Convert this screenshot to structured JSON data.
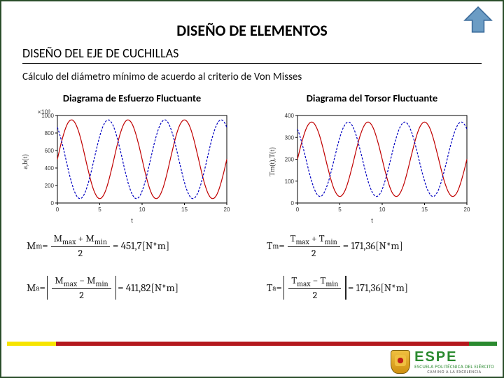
{
  "up_arrow": {
    "fill": "#6b9cc4",
    "stroke": "#3a6a9a"
  },
  "title": "DISEÑO DE ELEMENTOS",
  "subtitle": "DISEÑO DEL EJE DE CUCHILLAS",
  "desc": "Cálculo del diámetro mínimo de acuerdo al criterio de Von Misses",
  "left": {
    "col_title": "Diagrama de Esfuerzo Fluctuante",
    "exp": "×10³",
    "ylabel": "a,b(t)",
    "xlabel": "t",
    "chart": {
      "type": "line",
      "xlim": [
        0,
        20
      ],
      "ylim": [
        0,
        1000
      ],
      "xticks": [
        0,
        5,
        10,
        15,
        20
      ],
      "yticks": [
        0,
        200,
        400,
        600,
        800,
        1000
      ],
      "grid": false,
      "background": "#ffffff",
      "axis_color": "#000000",
      "tick_fontsize": 8,
      "series": [
        {
          "color": "#c00000",
          "label": "",
          "phase": 0,
          "amp": 450,
          "mid": 500,
          "cycles": 3,
          "width": 1.2,
          "dash": ""
        },
        {
          "color": "#0000c0",
          "label": "",
          "phase": 0.35,
          "amp": 450,
          "mid": 500,
          "cycles": 3,
          "width": 1.2,
          "dash": "3 2"
        }
      ]
    },
    "formula1": {
      "lhs_var": "M",
      "lhs_sub": "m",
      "num": "M",
      "numsub1": "max",
      "op": "+",
      "numsub2": "min",
      "den": "2",
      "rhs": "= 451,7[N*m]"
    },
    "formula2": {
      "lhs_var": "M",
      "lhs_sub": "a",
      "abs": true,
      "num": "M",
      "numsub1": "max",
      "op": "−",
      "numsub2": "min",
      "den": "2",
      "rhs": "= 411,82[N*m]"
    }
  },
  "right": {
    "col_title": "Diagrama del Torsor Fluctuante",
    "exp": "",
    "ylabel": "Tm(t),T(t)",
    "xlabel": "t",
    "chart": {
      "type": "line",
      "xlim": [
        0,
        20
      ],
      "ylim": [
        0,
        400
      ],
      "xticks": [
        0,
        5,
        10,
        15,
        20
      ],
      "yticks": [
        0,
        100,
        200,
        300,
        400
      ],
      "grid": false,
      "background": "#ffffff",
      "axis_color": "#000000",
      "tick_fontsize": 8,
      "series": [
        {
          "color": "#c00000",
          "label": "",
          "phase": 0,
          "amp": 170,
          "mid": 200,
          "cycles": 3,
          "width": 1.2,
          "dash": ""
        },
        {
          "color": "#0000c0",
          "label": "",
          "phase": 0.35,
          "amp": 170,
          "mid": 200,
          "cycles": 3,
          "width": 1.2,
          "dash": "3 2"
        }
      ]
    },
    "formula1": {
      "lhs_var": "T",
      "lhs_sub": "m",
      "num": "T",
      "numsub1": "max",
      "op": "+",
      "numsub2": "min",
      "den": "2",
      "rhs": "= 171,36[N*m]"
    },
    "formula2": {
      "lhs_var": "T",
      "lhs_sub": "a",
      "abs": true,
      "num": "T",
      "numsub1": "max",
      "op": "−",
      "numsub2": "min",
      "den": "2",
      "rhs": "= 171,36[N*m]"
    }
  },
  "logo": {
    "name": "ESPE",
    "sub": "ESCUELA POLITÉCNICA DEL EJÉRCITO",
    "tag": "CAMINO A LA EXCELENCIA"
  },
  "stripe_colors": [
    "#f7e400",
    "#b4181d",
    "#2a8a2f"
  ]
}
